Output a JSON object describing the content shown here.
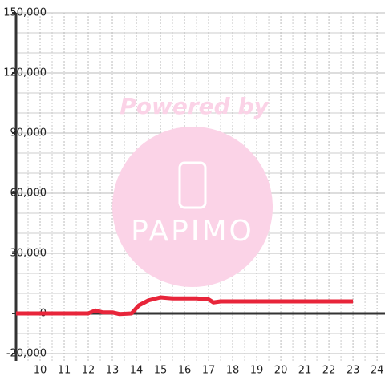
{
  "chart_data": {
    "type": "line",
    "watermark": {
      "line1": "Powered by",
      "line2": "PAPIMO"
    },
    "xlim": [
      9,
      24.33
    ],
    "ylim": [
      -20000,
      150000
    ],
    "xticks": [
      10,
      11,
      12,
      13,
      14,
      15,
      16,
      17,
      18,
      19,
      20,
      21,
      22,
      23,
      24
    ],
    "yticks": [
      {
        "value": -20000,
        "label": "-20,000"
      },
      0,
      {
        "value": 30000,
        "label": "30,000"
      },
      {
        "value": 60000,
        "label": "60,000"
      },
      {
        "value": 90000,
        "label": "90,000"
      },
      {
        "value": 120000,
        "label": "120,000"
      },
      {
        "value": 150000,
        "label": "150,000"
      }
    ],
    "minor_yticks": [
      -10000,
      10000,
      20000,
      40000,
      50000,
      70000,
      80000,
      100000,
      110000,
      130000,
      140000
    ],
    "minor_xticks": [
      9.5,
      10.5,
      11.5,
      12.5,
      13.5,
      14.5,
      15.5,
      16.5,
      17.5,
      18.5,
      19.5,
      20.5,
      21.5,
      22.5,
      23.5
    ],
    "grid": true,
    "series": [
      {
        "color": "#e8253a",
        "x": [
          9,
          10,
          11,
          12,
          12.3,
          12.6,
          13,
          13.3,
          13.8,
          14.1,
          14.5,
          15,
          15.5,
          16,
          16.5,
          17,
          17.2,
          17.5,
          18,
          19,
          20,
          21,
          22,
          23
        ],
        "values": [
          0,
          0,
          0,
          0,
          1500,
          500,
          500,
          -300,
          0,
          4000,
          6500,
          8000,
          7500,
          7500,
          7500,
          7000,
          5500,
          6000,
          6000,
          6000,
          6000,
          6000,
          6000,
          6000
        ]
      }
    ]
  }
}
